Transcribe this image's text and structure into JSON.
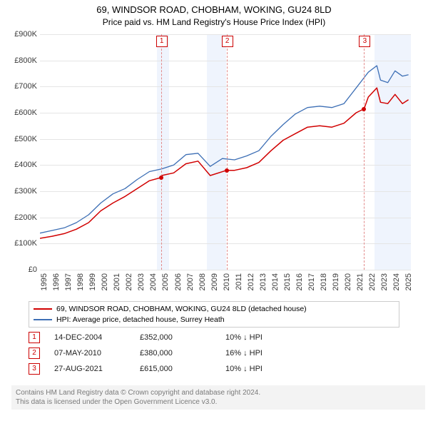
{
  "title": "69, WINDSOR ROAD, CHOBHAM, WOKING, GU24 8LD",
  "subtitle": "Price paid vs. HM Land Registry's House Price Index (HPI)",
  "title_fontsize": 13,
  "subtitle_fontsize": 12,
  "chart": {
    "type": "line",
    "x_domain": [
      1995,
      2025.5
    ],
    "y_domain": [
      0,
      900000
    ],
    "y_ticks": [
      0,
      100000,
      200000,
      300000,
      400000,
      500000,
      600000,
      700000,
      800000,
      900000
    ],
    "y_tick_labels": [
      "£0",
      "£100K",
      "£200K",
      "£300K",
      "£400K",
      "£500K",
      "£600K",
      "£700K",
      "£800K",
      "£900K"
    ],
    "x_ticks": [
      1995,
      1996,
      1997,
      1998,
      1999,
      2000,
      2001,
      2002,
      2003,
      2004,
      2005,
      2006,
      2007,
      2008,
      2009,
      2010,
      2011,
      2012,
      2013,
      2014,
      2015,
      2016,
      2017,
      2018,
      2019,
      2020,
      2021,
      2022,
      2023,
      2024,
      2025
    ],
    "x_tick_labels": [
      "1995",
      "1996",
      "1997",
      "1998",
      "1999",
      "2000",
      "2001",
      "2002",
      "2003",
      "2004",
      "2005",
      "2006",
      "2007",
      "2008",
      "2009",
      "2010",
      "2011",
      "2012",
      "2013",
      "2014",
      "2015",
      "2016",
      "2017",
      "2018",
      "2019",
      "2020",
      "2021",
      "2022",
      "2023",
      "2024",
      "2025"
    ],
    "gridline_color": "#e5e5e5",
    "background_color": "#ffffff",
    "shaded_bands": [
      {
        "from": 2004.6,
        "to": 2005.6,
        "color": "rgba(100,149,237,0.10)"
      },
      {
        "from": 2008.7,
        "to": 2010.3,
        "color": "rgba(100,149,237,0.10)"
      },
      {
        "from": 2022.5,
        "to": 2025.5,
        "color": "rgba(100,149,237,0.10)"
      }
    ],
    "series": [
      {
        "id": "hpi",
        "label": "HPI: Average price, detached house, Surrey Heath",
        "color": "#3d6fb5",
        "line_width": 1.3,
        "points": [
          [
            1995,
            140000
          ],
          [
            1996,
            150000
          ],
          [
            1997,
            160000
          ],
          [
            1998,
            180000
          ],
          [
            1999,
            210000
          ],
          [
            2000,
            255000
          ],
          [
            2001,
            290000
          ],
          [
            2002,
            310000
          ],
          [
            2003,
            345000
          ],
          [
            2004,
            375000
          ],
          [
            2005,
            385000
          ],
          [
            2006,
            400000
          ],
          [
            2007,
            440000
          ],
          [
            2008,
            445000
          ],
          [
            2009,
            395000
          ],
          [
            2010,
            425000
          ],
          [
            2011,
            420000
          ],
          [
            2012,
            435000
          ],
          [
            2013,
            455000
          ],
          [
            2014,
            510000
          ],
          [
            2015,
            555000
          ],
          [
            2016,
            595000
          ],
          [
            2017,
            620000
          ],
          [
            2018,
            625000
          ],
          [
            2019,
            620000
          ],
          [
            2020,
            635000
          ],
          [
            2021,
            695000
          ],
          [
            2022,
            755000
          ],
          [
            2022.7,
            780000
          ],
          [
            2023,
            725000
          ],
          [
            2023.6,
            715000
          ],
          [
            2024.2,
            760000
          ],
          [
            2024.8,
            740000
          ],
          [
            2025.3,
            745000
          ]
        ]
      },
      {
        "id": "property",
        "label": "69, WINDSOR ROAD, CHOBHAM, WOKING, GU24 8LD (detached house)",
        "color": "#d10000",
        "line_width": 1.5,
        "points": [
          [
            1995,
            120000
          ],
          [
            1996,
            128000
          ],
          [
            1997,
            138000
          ],
          [
            1998,
            155000
          ],
          [
            1999,
            180000
          ],
          [
            2000,
            225000
          ],
          [
            2001,
            255000
          ],
          [
            2002,
            280000
          ],
          [
            2003,
            310000
          ],
          [
            2004,
            340000
          ],
          [
            2004.95,
            352000
          ],
          [
            2005,
            360000
          ],
          [
            2006,
            370000
          ],
          [
            2007,
            405000
          ],
          [
            2008,
            415000
          ],
          [
            2009,
            360000
          ],
          [
            2010.35,
            380000
          ],
          [
            2011,
            380000
          ],
          [
            2012,
            390000
          ],
          [
            2013,
            410000
          ],
          [
            2014,
            455000
          ],
          [
            2015,
            495000
          ],
          [
            2016,
            520000
          ],
          [
            2017,
            545000
          ],
          [
            2018,
            550000
          ],
          [
            2019,
            545000
          ],
          [
            2020,
            560000
          ],
          [
            2021,
            600000
          ],
          [
            2021.65,
            615000
          ],
          [
            2022,
            660000
          ],
          [
            2022.7,
            695000
          ],
          [
            2023,
            640000
          ],
          [
            2023.6,
            635000
          ],
          [
            2024.2,
            670000
          ],
          [
            2024.8,
            635000
          ],
          [
            2025.3,
            650000
          ]
        ]
      }
    ]
  },
  "legend": {
    "items": [
      {
        "label": "69, WINDSOR ROAD, CHOBHAM, WOKING, GU24 8LD (detached house)",
        "color": "#d10000"
      },
      {
        "label": "HPI: Average price, detached house, Surrey Heath",
        "color": "#3d6fb5"
      }
    ]
  },
  "events": [
    {
      "n": "1",
      "x": 2004.95,
      "date": "14-DEC-2004",
      "price": 352000,
      "price_label": "£352,000",
      "delta": "10% ↓ HPI"
    },
    {
      "n": "2",
      "x": 2010.35,
      "date": "07-MAY-2010",
      "price": 380000,
      "price_label": "£380,000",
      "delta": "16% ↓ HPI"
    },
    {
      "n": "3",
      "x": 2021.65,
      "date": "27-AUG-2021",
      "price": 615000,
      "price_label": "£615,000",
      "delta": "10% ↓ HPI"
    }
  ],
  "event_box_color": "#cc0000",
  "event_line_color": "#e28a8a",
  "attribution": {
    "line1": "Contains HM Land Registry data © Crown copyright and database right 2024.",
    "line2": "This data is licensed under the Open Government Licence v3.0."
  }
}
